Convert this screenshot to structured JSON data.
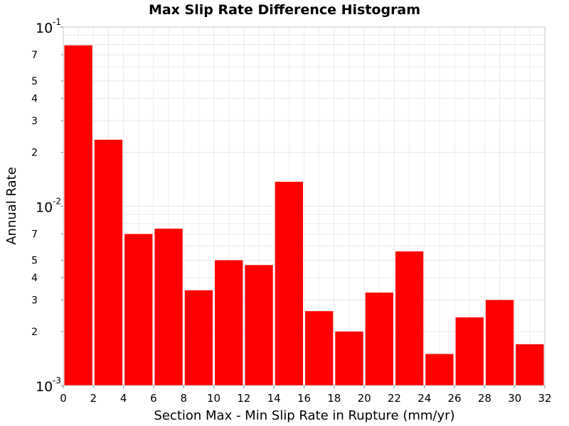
{
  "chart_data": {
    "type": "bar",
    "title": "Max Slip Rate Difference Histogram",
    "xlabel": "Section Max - Min Slip Rate in Rupture (mm/yr)",
    "ylabel": "Annual Rate",
    "yscale": "log",
    "grid": true,
    "legend": "none",
    "xlim": [
      0,
      32
    ],
    "ylim": [
      0.001,
      0.1
    ],
    "bar_width": 2,
    "bar_color": "#ff0000",
    "x_ticks": [
      "0",
      "2",
      "4",
      "6",
      "8",
      "10",
      "12",
      "14",
      "16",
      "18",
      "20",
      "22",
      "24",
      "26",
      "28",
      "30",
      "32"
    ],
    "y_major_ticks": [
      {
        "value": 0.1,
        "base": "10",
        "exp": "-1"
      },
      {
        "value": 0.01,
        "base": "10",
        "exp": "-2"
      },
      {
        "value": 0.001,
        "base": "10",
        "exp": "-3"
      }
    ],
    "y_minor_ticks": [
      {
        "value": 0.07,
        "label": "7"
      },
      {
        "value": 0.05,
        "label": "5"
      },
      {
        "value": 0.04,
        "label": "4"
      },
      {
        "value": 0.03,
        "label": "3"
      },
      {
        "value": 0.02,
        "label": "2"
      },
      {
        "value": 0.007,
        "label": "7"
      },
      {
        "value": 0.005,
        "label": "5"
      },
      {
        "value": 0.004,
        "label": "4"
      },
      {
        "value": 0.003,
        "label": "3"
      },
      {
        "value": 0.002,
        "label": "2"
      }
    ],
    "bins": [
      {
        "x": 1,
        "value": 0.079
      },
      {
        "x": 3,
        "value": 0.0235
      },
      {
        "x": 5,
        "value": 0.007
      },
      {
        "x": 7,
        "value": 0.0075
      },
      {
        "x": 9,
        "value": 0.0034
      },
      {
        "x": 11,
        "value": 0.005
      },
      {
        "x": 13,
        "value": 0.0047
      },
      {
        "x": 15,
        "value": 0.0137
      },
      {
        "x": 17,
        "value": 0.0026
      },
      {
        "x": 19,
        "value": 0.002
      },
      {
        "x": 21,
        "value": 0.0033
      },
      {
        "x": 23,
        "value": 0.0056
      },
      {
        "x": 25,
        "value": 0.0015
      },
      {
        "x": 27,
        "value": 0.0024
      },
      {
        "x": 29,
        "value": 0.003
      },
      {
        "x": 31,
        "value": 0.0017
      }
    ]
  }
}
